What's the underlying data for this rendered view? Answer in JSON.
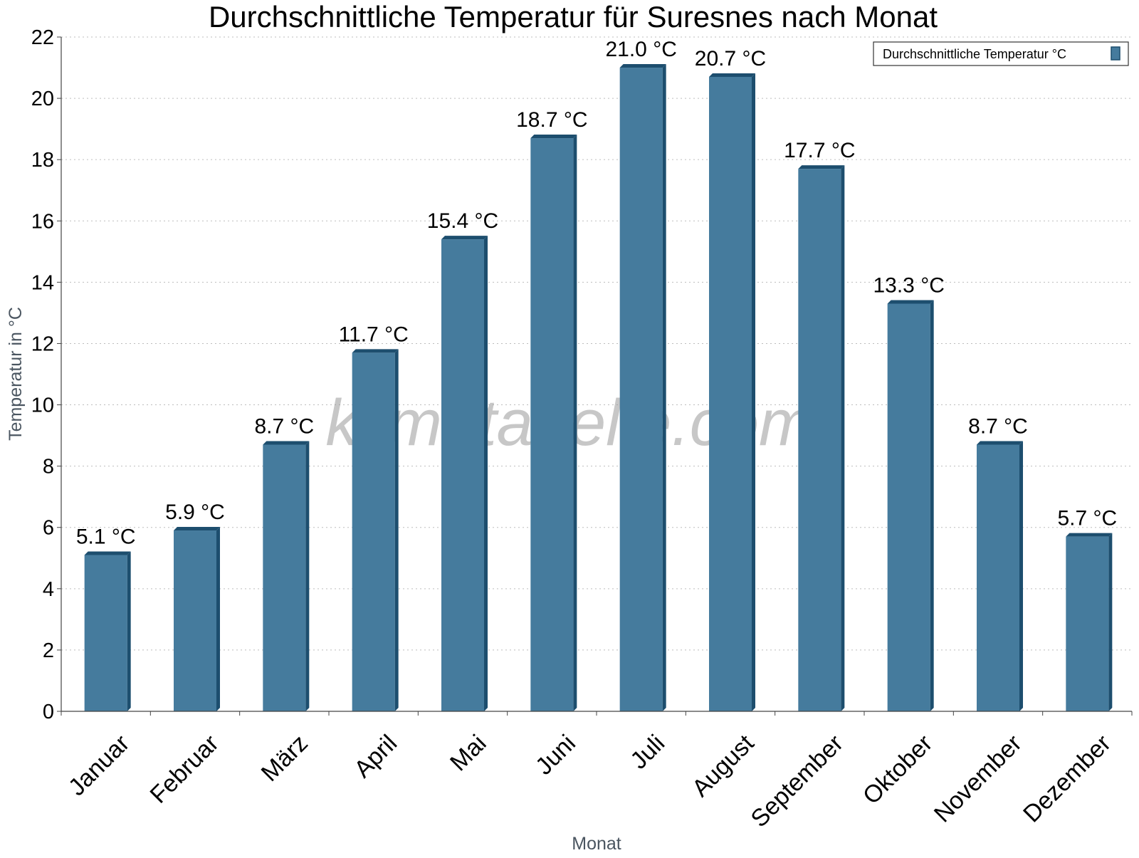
{
  "chart_data": {
    "type": "bar",
    "title": "Durchschnittliche Temperatur für Suresnes nach Monat",
    "xlabel": "Monat",
    "ylabel": "Temperatur in °C",
    "categories": [
      "Januar",
      "Februar",
      "März",
      "April",
      "Mai",
      "Juni",
      "Juli",
      "August",
      "September",
      "Oktober",
      "November",
      "Dezember"
    ],
    "series": [
      {
        "name": "Durchschnittliche Temperatur °C",
        "values": [
          5.1,
          5.9,
          8.7,
          11.7,
          15.4,
          18.7,
          21.0,
          20.7,
          17.7,
          13.3,
          8.7,
          5.7
        ],
        "labels": [
          "5.1 °C",
          "5.9 °C",
          "8.7 °C",
          "11.7 °C",
          "15.4 °C",
          "18.7 °C",
          "21.0 °C",
          "20.7 °C",
          "17.7 °C",
          "13.3 °C",
          "8.7 °C",
          "5.7 °C"
        ],
        "color": "#457b9d",
        "edge_color": "#1d4e6e"
      }
    ],
    "ylim": [
      0,
      22
    ],
    "yticks": [
      "0",
      "2",
      "4",
      "6",
      "8",
      "10",
      "12",
      "14",
      "16",
      "18",
      "20",
      "22"
    ],
    "grid": true,
    "legend_position": "top-right"
  },
  "watermark": "klimatabelle.com"
}
